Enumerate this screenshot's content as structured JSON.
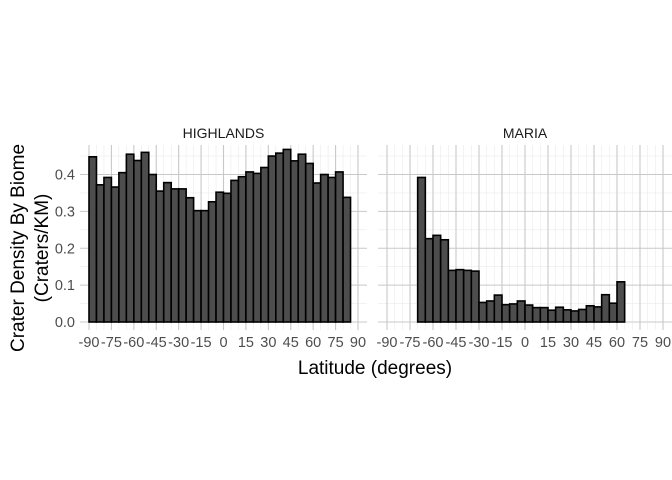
{
  "chart_data": {
    "type": "bar",
    "xlabel": "Latitude (degrees)",
    "ylabel_lines": [
      "Crater Density By Biome",
      "(Craters/KM)"
    ],
    "xlim": [
      -90,
      90
    ],
    "ylim": [
      0,
      0.48
    ],
    "x_ticks": [
      -90,
      -75,
      -60,
      -45,
      -30,
      -15,
      0,
      15,
      30,
      45,
      60,
      75,
      90
    ],
    "y_ticks": [
      0.0,
      0.1,
      0.2,
      0.3,
      0.4
    ],
    "y_tick_labels": [
      "0.0",
      "0.1",
      "0.2",
      "0.3",
      "0.4"
    ],
    "x_tick_labels": [
      "-90",
      "-75",
      "-60",
      "-45",
      "-30",
      "-15",
      "0",
      "15",
      "30",
      "45",
      "60",
      "75",
      "90"
    ],
    "bin_width": 5,
    "grid": true,
    "fill_color": "#4d4d4d",
    "border_color": "#000000",
    "grid_major_color": "#c8c8c8",
    "grid_minor_color": "#ebebeb",
    "panels": [
      {
        "label": "HIGHLANDS",
        "x_start": -90,
        "values": [
          0.448,
          0.372,
          0.392,
          0.366,
          0.405,
          0.455,
          0.438,
          0.46,
          0.4,
          0.355,
          0.378,
          0.361,
          0.361,
          0.337,
          0.302,
          0.302,
          0.326,
          0.352,
          0.349,
          0.384,
          0.394,
          0.407,
          0.403,
          0.419,
          0.45,
          0.458,
          0.468,
          0.437,
          0.455,
          0.43,
          0.377,
          0.4,
          0.392,
          0.407,
          0.338
        ]
      },
      {
        "label": "MARIA",
        "x_start": -70,
        "values": [
          0.392,
          0.226,
          0.235,
          0.223,
          0.14,
          0.142,
          0.14,
          0.138,
          0.053,
          0.057,
          0.073,
          0.047,
          0.049,
          0.057,
          0.046,
          0.039,
          0.039,
          0.032,
          0.04,
          0.033,
          0.03,
          0.034,
          0.044,
          0.041,
          0.074,
          0.051,
          0.109
        ]
      }
    ]
  }
}
